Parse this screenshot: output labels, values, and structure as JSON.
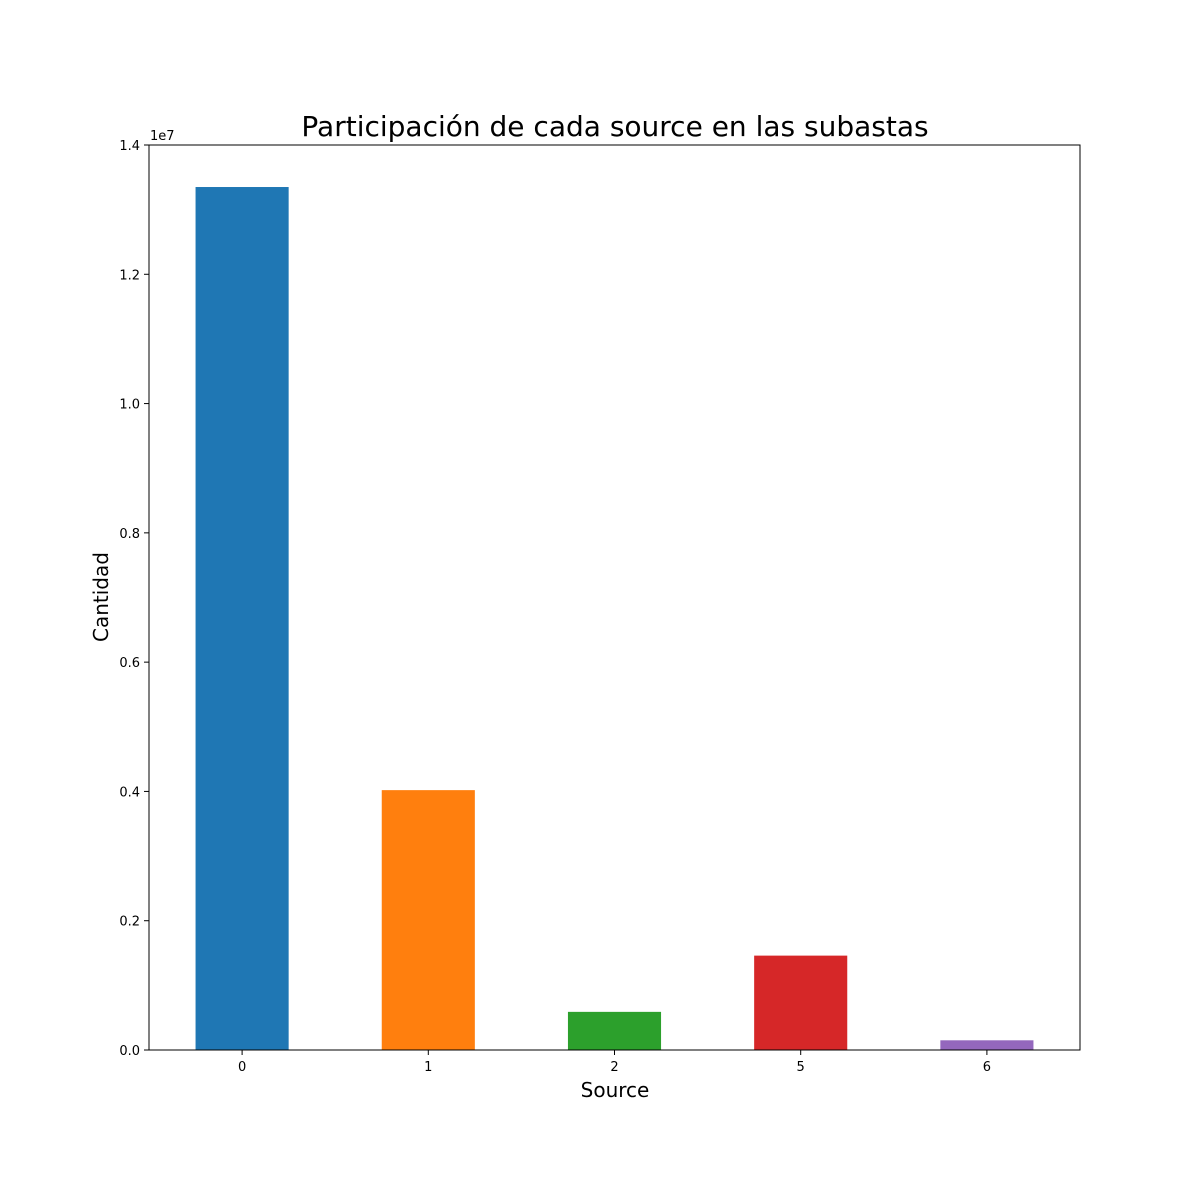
{
  "chart_data": {
    "type": "bar",
    "title": "Participación de cada source en las subastas",
    "xlabel": "Source",
    "ylabel": "Cantidad",
    "categories": [
      "0",
      "1",
      "2",
      "5",
      "6"
    ],
    "values": [
      13350000,
      4020000,
      590000,
      1460000,
      150000
    ],
    "colors": [
      "#1f77b4",
      "#ff7f0e",
      "#2ca02c",
      "#d62728",
      "#9467bd"
    ],
    "ylim": [
      0,
      14000000
    ],
    "yticks": [
      0,
      2000000,
      4000000,
      6000000,
      8000000,
      10000000,
      12000000,
      14000000
    ],
    "ytick_labels": [
      "0.0",
      "0.2",
      "0.4",
      "0.6",
      "0.8",
      "1.0",
      "1.2",
      "1.4"
    ],
    "y_offset_label": "1e7",
    "grid": false,
    "legend": false
  }
}
